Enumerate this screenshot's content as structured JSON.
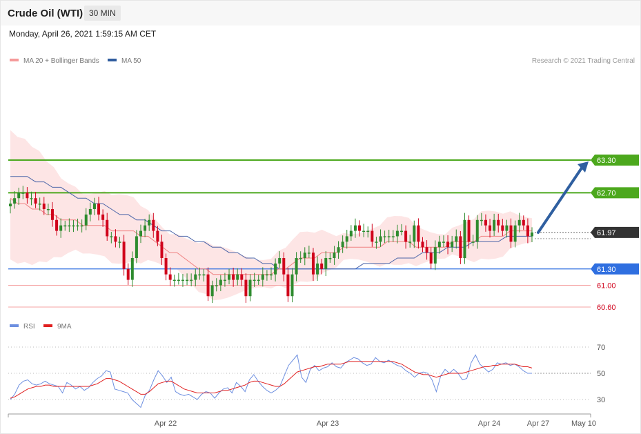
{
  "header": {
    "title": "Crude Oil (WTI)",
    "timeframe": "30 MIN",
    "datetime": "Monday, April 26, 2021 1:59:15 AM CET"
  },
  "legend": {
    "ma20": "MA 20 + Bollinger Bands",
    "ma50": "MA 50",
    "rsi": "RSI",
    "rsi_ma": "9MA"
  },
  "copyright": "Research © 2021 Trading Central",
  "colors": {
    "candle_up": "#2e8b2e",
    "candle_down": "#d0021b",
    "bollinger_band": "#fde0e0",
    "ma20": "#f08080",
    "ma50": "#4a64a8",
    "resistance": "#4ca81d",
    "support": "#2f6fe0",
    "support_light": "#f5a3a3",
    "rsi": "#6d8fe0",
    "rsi_ma": "#e02020",
    "arrow": "#2f5fa0",
    "last_price_tag": "#333333"
  },
  "chart_data": [
    {
      "type": "candlestick",
      "x_labels": [
        "Apr 22",
        "Apr 23",
        "Apr 24",
        "Apr 27",
        "May 10"
      ],
      "ylim": [
        60.4,
        64.8
      ],
      "last_price": 61.97,
      "levels": [
        {
          "value": 63.3,
          "label": "63.30",
          "kind": "resistance"
        },
        {
          "value": 62.7,
          "label": "62.70",
          "kind": "resistance"
        },
        {
          "value": 61.3,
          "label": "61.30",
          "kind": "support"
        },
        {
          "value": 61.0,
          "label": "61.00",
          "kind": "support-light"
        },
        {
          "value": 60.6,
          "label": "60.60",
          "kind": "support-light"
        }
      ],
      "forecast_arrow": {
        "from": 61.97,
        "to": 63.3
      },
      "closes": [
        62.5,
        62.6,
        62.7,
        62.7,
        62.6,
        62.6,
        62.5,
        62.5,
        62.4,
        62.4,
        62.2,
        62.0,
        62.1,
        62.1,
        62.1,
        62.1,
        62.1,
        62.1,
        62.3,
        62.4,
        62.5,
        62.3,
        62.2,
        61.9,
        61.9,
        61.8,
        61.8,
        61.3,
        61.1,
        61.5,
        61.9,
        62.0,
        62.1,
        62.2,
        62.0,
        61.8,
        61.5,
        61.2,
        61.1,
        61.1,
        61.1,
        61.1,
        61.1,
        61.1,
        61.2,
        61.2,
        61.2,
        60.8,
        61.0,
        61.0,
        61.1,
        61.1,
        61.2,
        61.1,
        61.2,
        61.1,
        60.8,
        61.1,
        61.1,
        61.1,
        61.2,
        61.2,
        61.2,
        61.4,
        61.5,
        61.2,
        60.8,
        61.2,
        61.5,
        61.5,
        61.6,
        61.6,
        61.2,
        61.4,
        61.3,
        61.5,
        61.5,
        61.6,
        61.7,
        61.8,
        61.9,
        62.0,
        62.1,
        62.0,
        62.0,
        62.0,
        61.8,
        61.8,
        61.9,
        61.9,
        61.9,
        61.9,
        62.0,
        62.0,
        61.8,
        61.8,
        62.1,
        61.8,
        61.7,
        61.6,
        61.4,
        61.7,
        61.8,
        61.8,
        61.7,
        61.8,
        61.9,
        61.5,
        62.2,
        61.8,
        61.8,
        62.2,
        62.2,
        62.1,
        62.0,
        62.2,
        62.1,
        62.0,
        62.1,
        61.8,
        62.1,
        62.2,
        62.1,
        61.9,
        61.97
      ],
      "ma20": [
        62.6,
        62.5,
        62.5,
        62.4,
        62.4,
        62.3,
        62.3,
        62.2,
        62.2,
        62.2,
        62.1,
        62.1,
        62.1,
        62.1,
        62.0,
        62.0,
        62.0,
        62.0,
        61.9,
        61.9,
        61.8,
        61.7,
        61.6,
        61.6,
        61.5,
        61.4,
        61.3,
        61.3,
        61.2,
        61.2,
        61.2,
        61.2,
        61.2,
        61.2,
        61.2,
        61.2,
        61.2,
        61.3,
        61.3,
        61.4,
        61.5,
        61.5,
        61.5,
        61.6,
        61.6,
        61.6,
        61.7,
        61.7,
        61.7,
        61.7,
        61.7,
        61.7,
        61.8,
        61.8,
        61.8,
        61.8,
        61.7,
        61.7,
        61.7,
        61.7,
        61.7,
        61.8,
        61.8,
        61.8,
        61.8,
        61.9,
        61.9,
        61.9,
        61.9,
        62.0,
        62.0,
        62.0,
        62.0
      ],
      "ma50": [
        63.0,
        63.0,
        63.0,
        62.9,
        62.9,
        62.8,
        62.8,
        62.7,
        62.6,
        62.6,
        62.5,
        62.5,
        62.4,
        62.3,
        62.3,
        62.2,
        62.2,
        62.1,
        62.0,
        62.0,
        61.9,
        61.9,
        61.8,
        61.8,
        61.7,
        61.7,
        61.6,
        61.6,
        61.5,
        61.5,
        61.4,
        61.4,
        61.3,
        61.3,
        61.3,
        61.3,
        61.3,
        61.3,
        61.3,
        61.3,
        61.3,
        61.3,
        61.4,
        61.4,
        61.4,
        61.4,
        61.5,
        61.5,
        61.5,
        61.6,
        61.6,
        61.6,
        61.7,
        61.7,
        61.7,
        61.8,
        61.8,
        61.8,
        61.8,
        61.9,
        61.9,
        61.9,
        61.9
      ]
    },
    {
      "type": "line",
      "name": "RSI",
      "yticks": [
        70,
        50,
        30
      ],
      "ylim": [
        20,
        80
      ],
      "series": [
        {
          "name": "RSI",
          "values": [
            30,
            34,
            41,
            44,
            45,
            42,
            41,
            42,
            44,
            42,
            41,
            40,
            35,
            43,
            41,
            38,
            40,
            37,
            39,
            43,
            46,
            48,
            52,
            51,
            38,
            37,
            36,
            35,
            30,
            27,
            24,
            33,
            37,
            45,
            52,
            48,
            43,
            47,
            36,
            34,
            33,
            34,
            32,
            30,
            34,
            36,
            35,
            31,
            35,
            38,
            39,
            35,
            43,
            40,
            36,
            45,
            49,
            44,
            40,
            37,
            35,
            37,
            40,
            48,
            56,
            60,
            64,
            47,
            43,
            53,
            56,
            52,
            54,
            55,
            58,
            55,
            54,
            58,
            60,
            62,
            61,
            58,
            56,
            57,
            62,
            59,
            58,
            60,
            58,
            56,
            55,
            52,
            50,
            47,
            50,
            51,
            50,
            45,
            36,
            48,
            53,
            50,
            53,
            50,
            45,
            46,
            58,
            64,
            57,
            54,
            51,
            53,
            58,
            57,
            58,
            56,
            57,
            55,
            52,
            50,
            50
          ]
        },
        {
          "name": "9MA",
          "values": [
            31,
            32,
            34,
            36,
            38,
            39,
            40,
            40,
            41,
            41,
            40,
            40,
            40,
            40,
            40,
            40,
            40,
            40,
            40,
            41,
            42,
            44,
            46,
            46,
            45,
            44,
            42,
            40,
            38,
            36,
            34,
            34,
            36,
            39,
            42,
            43,
            44,
            44,
            42,
            40,
            38,
            37,
            36,
            35,
            35,
            35,
            35,
            35,
            36,
            37,
            37,
            38,
            39,
            40,
            41,
            43,
            44,
            44,
            43,
            42,
            41,
            40,
            40,
            42,
            45,
            48,
            51,
            52,
            53,
            54,
            55,
            55,
            56,
            57,
            57,
            57,
            57,
            58,
            59,
            59,
            59,
            59,
            59,
            59,
            59,
            59,
            59,
            59,
            59,
            58,
            57,
            55,
            53,
            51,
            50,
            49,
            49,
            48,
            47,
            48,
            49,
            50,
            50,
            50,
            50,
            51,
            52,
            53,
            54,
            55,
            55,
            56,
            56,
            57,
            57,
            57,
            57,
            56,
            55,
            55,
            54
          ]
        }
      ]
    }
  ]
}
